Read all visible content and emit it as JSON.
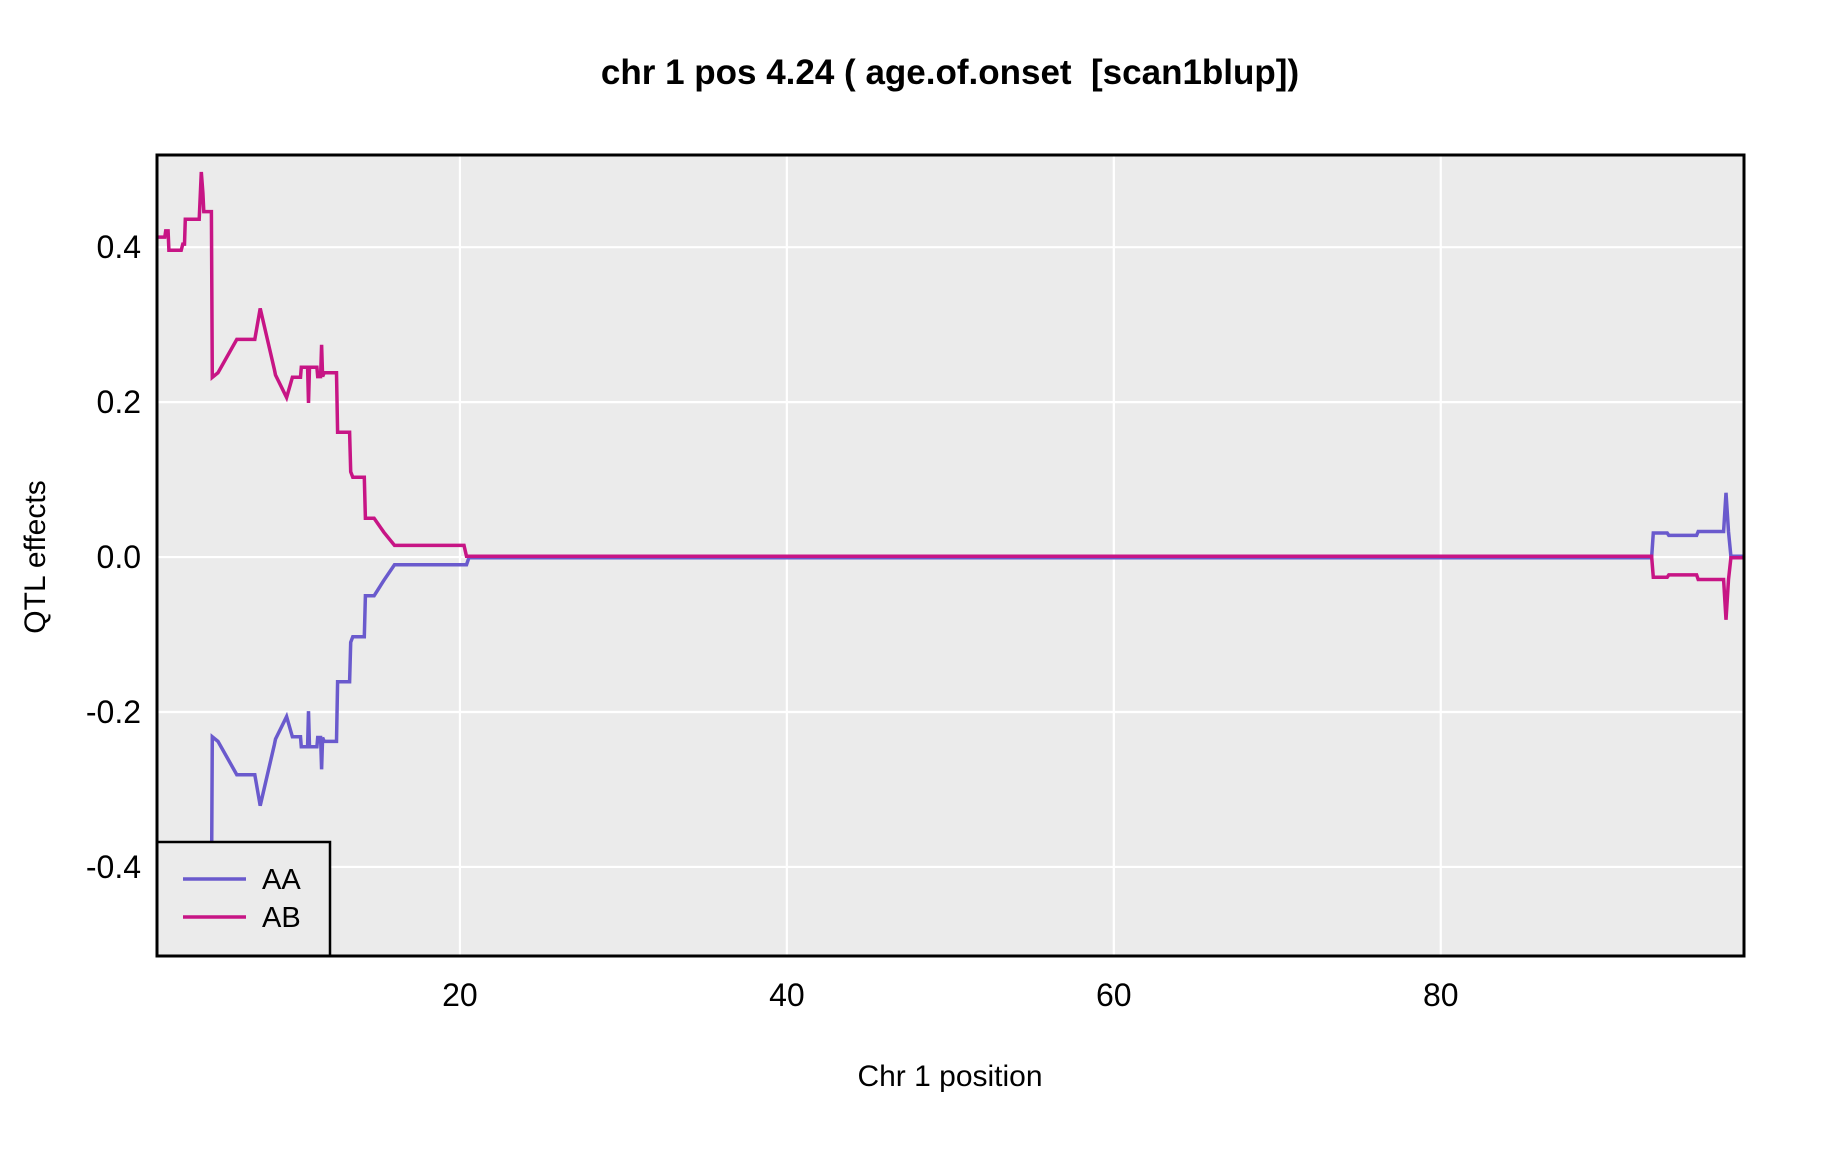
{
  "figure": {
    "title": "chr 1 pos 4.24 ( age.of.onset  [scan1blup])"
  },
  "chart_data": {
    "type": "line",
    "title": "chr 1 pos 4.24 ( age.of.onset  [scan1blup])",
    "xlabel": "Chr 1 position",
    "ylabel": "QTL effects",
    "xlim": [
      1.47,
      98.55
    ],
    "ylim": [
      -0.515,
      0.519
    ],
    "x_ticks": [
      {
        "v": 20,
        "label": "20"
      },
      {
        "v": 40,
        "label": "40"
      },
      {
        "v": 60,
        "label": "60"
      },
      {
        "v": 80,
        "label": "80"
      }
    ],
    "y_ticks": [
      {
        "v": 0.4,
        "label": "0.4"
      },
      {
        "v": 0.2,
        "label": "0.2"
      },
      {
        "v": 0.0,
        "label": "0.0"
      },
      {
        "v": -0.2,
        "label": "-0.2"
      },
      {
        "v": -0.4,
        "label": "-0.4"
      }
    ],
    "grid": "major white gridlines on gray panel, no minor grid, no tick marks",
    "legend_position": "bottom-left inside panel",
    "panel_bg": "#EBEBEB",
    "grid_color": "#FFFFFF",
    "border_color": "#000000",
    "series": [
      {
        "name": "AA",
        "color": "#6A5ACD",
        "points": [
          [
            1.47,
            -0.413
          ],
          [
            1.95,
            -0.413
          ],
          [
            2.0,
            -0.421
          ],
          [
            2.15,
            -0.421
          ],
          [
            2.2,
            -0.396
          ],
          [
            2.95,
            -0.396
          ],
          [
            3.05,
            -0.404
          ],
          [
            3.15,
            -0.404
          ],
          [
            3.2,
            -0.436
          ],
          [
            4.05,
            -0.436
          ],
          [
            4.18,
            -0.497
          ],
          [
            4.28,
            -0.47
          ],
          [
            4.33,
            -0.446
          ],
          [
            4.8,
            -0.446
          ],
          [
            4.85,
            -0.232
          ],
          [
            5.2,
            -0.238
          ],
          [
            6.35,
            -0.281
          ],
          [
            7.45,
            -0.281
          ],
          [
            7.78,
            -0.321
          ],
          [
            8.65,
            -0.242
          ],
          [
            8.72,
            -0.235
          ],
          [
            9.4,
            -0.206
          ],
          [
            9.75,
            -0.232
          ],
          [
            10.25,
            -0.232
          ],
          [
            10.3,
            -0.245
          ],
          [
            10.68,
            -0.245
          ],
          [
            10.74,
            -0.199
          ],
          [
            10.8,
            -0.245
          ],
          [
            11.25,
            -0.245
          ],
          [
            11.3,
            -0.233
          ],
          [
            11.48,
            -0.233
          ],
          [
            11.54,
            -0.274
          ],
          [
            11.6,
            -0.233
          ],
          [
            11.7,
            -0.238
          ],
          [
            12.45,
            -0.238
          ],
          [
            12.52,
            -0.161
          ],
          [
            13.25,
            -0.161
          ],
          [
            13.32,
            -0.11
          ],
          [
            13.45,
            -0.103
          ],
          [
            14.15,
            -0.103
          ],
          [
            14.22,
            -0.05
          ],
          [
            14.75,
            -0.05
          ],
          [
            15.35,
            -0.03
          ],
          [
            16.0,
            -0.01
          ],
          [
            20.4,
            -0.01
          ],
          [
            20.55,
            -0.001
          ],
          [
            92.9,
            -0.001
          ],
          [
            93.0,
            0.031
          ],
          [
            93.85,
            0.031
          ],
          [
            93.95,
            0.028
          ],
          [
            95.65,
            0.028
          ],
          [
            95.75,
            0.033
          ],
          [
            97.3,
            0.033
          ],
          [
            97.45,
            0.083
          ],
          [
            97.6,
            0.033
          ],
          [
            97.75,
            0.001
          ],
          [
            98.55,
            0.001
          ]
        ]
      },
      {
        "name": "AB",
        "color": "#C71585",
        "points": [
          [
            1.47,
            0.413
          ],
          [
            1.95,
            0.413
          ],
          [
            2.0,
            0.421
          ],
          [
            2.15,
            0.421
          ],
          [
            2.2,
            0.396
          ],
          [
            2.95,
            0.396
          ],
          [
            3.05,
            0.404
          ],
          [
            3.15,
            0.404
          ],
          [
            3.2,
            0.436
          ],
          [
            4.05,
            0.436
          ],
          [
            4.18,
            0.497
          ],
          [
            4.28,
            0.47
          ],
          [
            4.33,
            0.446
          ],
          [
            4.8,
            0.446
          ],
          [
            4.85,
            0.232
          ],
          [
            5.2,
            0.238
          ],
          [
            6.35,
            0.281
          ],
          [
            7.45,
            0.281
          ],
          [
            7.78,
            0.321
          ],
          [
            8.65,
            0.242
          ],
          [
            8.72,
            0.235
          ],
          [
            9.4,
            0.206
          ],
          [
            9.75,
            0.232
          ],
          [
            10.25,
            0.232
          ],
          [
            10.3,
            0.245
          ],
          [
            10.68,
            0.245
          ],
          [
            10.74,
            0.199
          ],
          [
            10.8,
            0.245
          ],
          [
            11.25,
            0.245
          ],
          [
            11.3,
            0.233
          ],
          [
            11.48,
            0.233
          ],
          [
            11.54,
            0.274
          ],
          [
            11.6,
            0.233
          ],
          [
            11.7,
            0.238
          ],
          [
            12.45,
            0.238
          ],
          [
            12.52,
            0.161
          ],
          [
            13.25,
            0.161
          ],
          [
            13.32,
            0.11
          ],
          [
            13.45,
            0.103
          ],
          [
            14.15,
            0.103
          ],
          [
            14.22,
            0.05
          ],
          [
            14.75,
            0.05
          ],
          [
            15.35,
            0.032
          ],
          [
            16.0,
            0.015
          ],
          [
            20.25,
            0.015
          ],
          [
            20.4,
            0.001
          ],
          [
            92.9,
            0.001
          ],
          [
            93.0,
            -0.026
          ],
          [
            93.85,
            -0.026
          ],
          [
            93.95,
            -0.023
          ],
          [
            95.65,
            -0.023
          ],
          [
            95.75,
            -0.029
          ],
          [
            97.3,
            -0.029
          ],
          [
            97.45,
            -0.081
          ],
          [
            97.6,
            -0.029
          ],
          [
            97.75,
            -0.001
          ],
          [
            98.55,
            -0.001
          ]
        ]
      }
    ],
    "legend": {
      "items": [
        {
          "label": "AA"
        },
        {
          "label": "AB"
        }
      ]
    }
  }
}
